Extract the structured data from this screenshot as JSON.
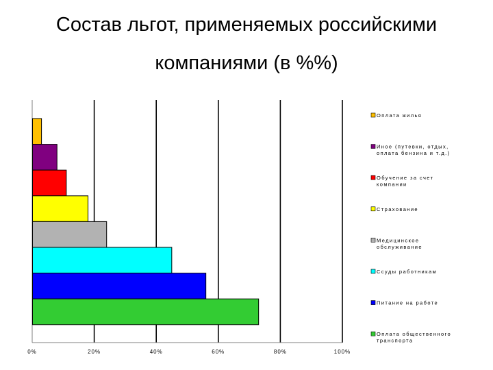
{
  "title": {
    "line1": "Состав льгот, применяемых российскими",
    "line2": "компаниями (в %%)"
  },
  "chart_data": {
    "type": "bar",
    "orientation": "horizontal",
    "title": "Состав льгот, применяемых российскими компаниями (в %%)",
    "xlim": [
      0,
      100
    ],
    "x_ticks": [
      "0%",
      "20%",
      "40%",
      "60%",
      "80%",
      "100%"
    ],
    "grid": true,
    "legend_position": "right",
    "series": [
      {
        "name": "Оплата жилья",
        "value": 3,
        "color": "#FFC000",
        "legend_lines": [
          "Оплата жилья"
        ]
      },
      {
        "name": "Иное (путевки, отдых, оплата бензина и т.д.)",
        "value": 8,
        "color": "#800080",
        "legend_lines": [
          "Иное (путевки, отдых,",
          "оплата бензина и т.д.)"
        ]
      },
      {
        "name": "Обучение за счет компании",
        "value": 11,
        "color": "#FF0000",
        "legend_lines": [
          "Обучение за счет",
          "компании"
        ]
      },
      {
        "name": "Страхование",
        "value": 18,
        "color": "#FFFF00",
        "legend_lines": [
          "Страхование"
        ]
      },
      {
        "name": "Медицинское обслуживание",
        "value": 24,
        "color": "#B2B2B2",
        "legend_lines": [
          "Медицинское",
          "обслуживание"
        ]
      },
      {
        "name": "Ссуды работникам",
        "value": 45,
        "color": "#00FFFF",
        "legend_lines": [
          "Ссуды работникам"
        ]
      },
      {
        "name": "Питание на работе",
        "value": 56,
        "color": "#0000FF",
        "legend_lines": [
          "Питание на работе"
        ]
      },
      {
        "name": "Оплата общественного транспорта",
        "value": 73,
        "color": "#33CC33",
        "legend_lines": [
          "Оплата общественного",
          "транспорта"
        ]
      }
    ]
  }
}
